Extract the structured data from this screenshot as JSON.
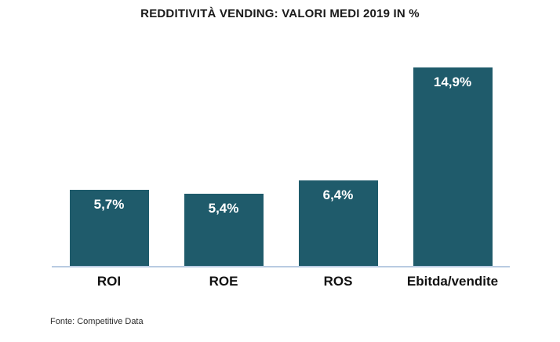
{
  "source_note": "Fonte: Competitive Data",
  "colors": {
    "bar": "#1f5b6b",
    "baseline": "#b9cbe2",
    "value_label": "#ffffff",
    "title_text": "#1a1a1a",
    "category_text": "#111111",
    "background": "#ffffff"
  },
  "chart_data": {
    "type": "bar",
    "title": "REDDITIVITÀ VENDING: VALORI MEDI 2019 IN %",
    "categories": [
      "ROI",
      "ROE",
      "ROS",
      "Ebitda/vendite"
    ],
    "values": [
      5.7,
      5.4,
      6.4,
      14.9
    ],
    "value_labels": [
      "5,7%",
      "5,4%",
      "6,4%",
      "14,9%"
    ],
    "unit": "%",
    "xlabel": "",
    "ylabel": "",
    "ylim": [
      0,
      15.9
    ],
    "grid": false,
    "legend": false,
    "value_labels_position": "inside-top",
    "source": "Fonte: Competitive Data"
  }
}
